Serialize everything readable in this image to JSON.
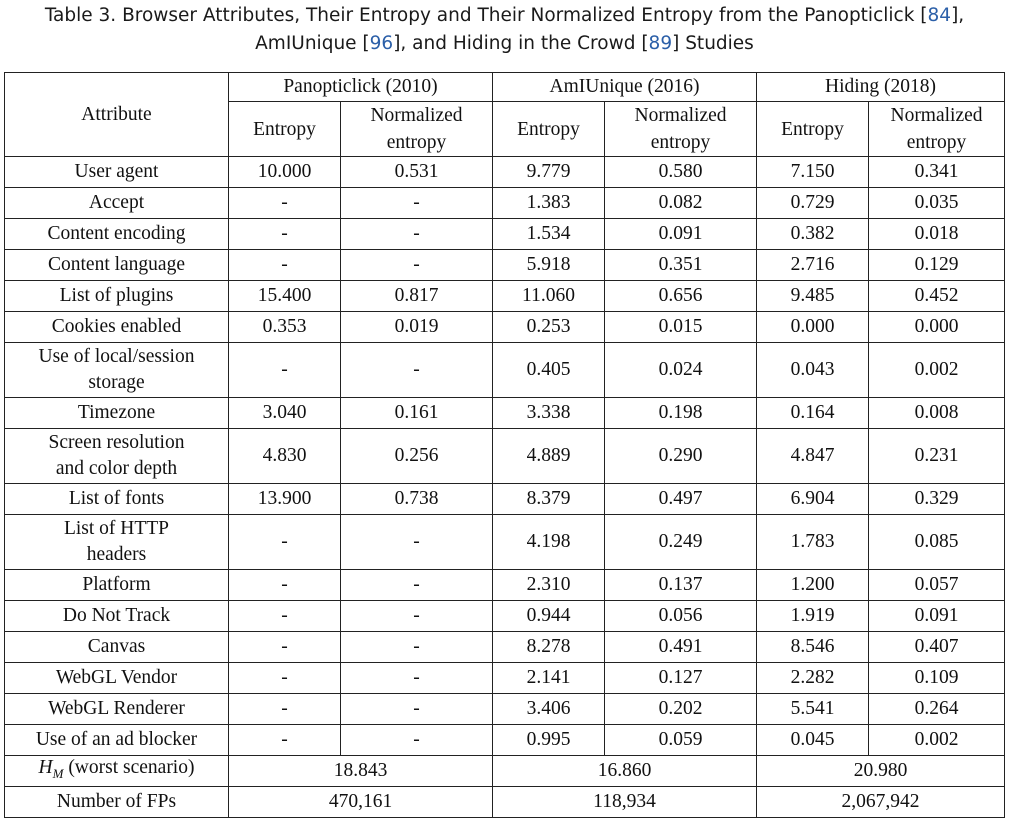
{
  "caption": {
    "line1_prefix": "Table 3.  Browser Attributes, Their Entropy and Their Normalized Entropy from the Panopticlick [",
    "ref1": "84",
    "line1_suffix": "],",
    "line2_prefix": "AmIUnique [",
    "ref2": "96",
    "line2_mid": "], and Hiding in the Crowd [",
    "ref3": "89",
    "line2_suffix": "] Studies"
  },
  "header": {
    "attribute": "Attribute",
    "studies": [
      "Panopticlick (2010)",
      "AmIUnique (2016)",
      "Hiding (2018)"
    ],
    "entropy": "Entropy",
    "normalized_line1": "Normalized",
    "normalized_line2": "entropy"
  },
  "rows": [
    {
      "line1": "User agent",
      "line2": "",
      "v": [
        "10.000",
        "0.531",
        "9.779",
        "0.580",
        "7.150",
        "0.341"
      ]
    },
    {
      "line1": "Accept",
      "line2": "",
      "v": [
        "-",
        "-",
        "1.383",
        "0.082",
        "0.729",
        "0.035"
      ]
    },
    {
      "line1": "Content encoding",
      "line2": "",
      "v": [
        "-",
        "-",
        "1.534",
        "0.091",
        "0.382",
        "0.018"
      ]
    },
    {
      "line1": "Content language",
      "line2": "",
      "v": [
        "-",
        "-",
        "5.918",
        "0.351",
        "2.716",
        "0.129"
      ]
    },
    {
      "line1": "List of plugins",
      "line2": "",
      "v": [
        "15.400",
        "0.817",
        "11.060",
        "0.656",
        "9.485",
        "0.452"
      ]
    },
    {
      "line1": "Cookies enabled",
      "line2": "",
      "v": [
        "0.353",
        "0.019",
        "0.253",
        "0.015",
        "0.000",
        "0.000"
      ]
    },
    {
      "line1": "Use of local/session",
      "line2": "storage",
      "v": [
        "-",
        "-",
        "0.405",
        "0.024",
        "0.043",
        "0.002"
      ]
    },
    {
      "line1": "Timezone",
      "line2": "",
      "v": [
        "3.040",
        "0.161",
        "3.338",
        "0.198",
        "0.164",
        "0.008"
      ]
    },
    {
      "line1": "Screen resolution",
      "line2": "and color depth",
      "v": [
        "4.830",
        "0.256",
        "4.889",
        "0.290",
        "4.847",
        "0.231"
      ]
    },
    {
      "line1": "List of fonts",
      "line2": "",
      "v": [
        "13.900",
        "0.738",
        "8.379",
        "0.497",
        "6.904",
        "0.329"
      ]
    },
    {
      "line1": "List of HTTP",
      "line2": "headers",
      "v": [
        "-",
        "-",
        "4.198",
        "0.249",
        "1.783",
        "0.085"
      ]
    },
    {
      "line1": "Platform",
      "line2": "",
      "v": [
        "-",
        "-",
        "2.310",
        "0.137",
        "1.200",
        "0.057"
      ]
    },
    {
      "line1": "Do Not Track",
      "line2": "",
      "v": [
        "-",
        "-",
        "0.944",
        "0.056",
        "1.919",
        "0.091"
      ]
    },
    {
      "line1": "Canvas",
      "line2": "",
      "v": [
        "-",
        "-",
        "8.278",
        "0.491",
        "8.546",
        "0.407"
      ]
    },
    {
      "line1": "WebGL Vendor",
      "line2": "",
      "v": [
        "-",
        "-",
        "2.141",
        "0.127",
        "2.282",
        "0.109"
      ]
    },
    {
      "line1": "WebGL Renderer",
      "line2": "",
      "v": [
        "-",
        "-",
        "3.406",
        "0.202",
        "5.541",
        "0.264"
      ]
    },
    {
      "line1": "Use of an ad blocker",
      "line2": "",
      "v": [
        "-",
        "-",
        "0.995",
        "0.059",
        "0.045",
        "0.002"
      ]
    }
  ],
  "summary": {
    "hm_var": "H",
    "hm_sub": "M",
    "hm_suffix": " (worst scenario)",
    "hm_values": [
      "18.843",
      "16.860",
      "20.980"
    ],
    "fps_label": "Number of FPs",
    "fps_values": [
      "470,161",
      "118,934",
      "2,067,942"
    ]
  }
}
